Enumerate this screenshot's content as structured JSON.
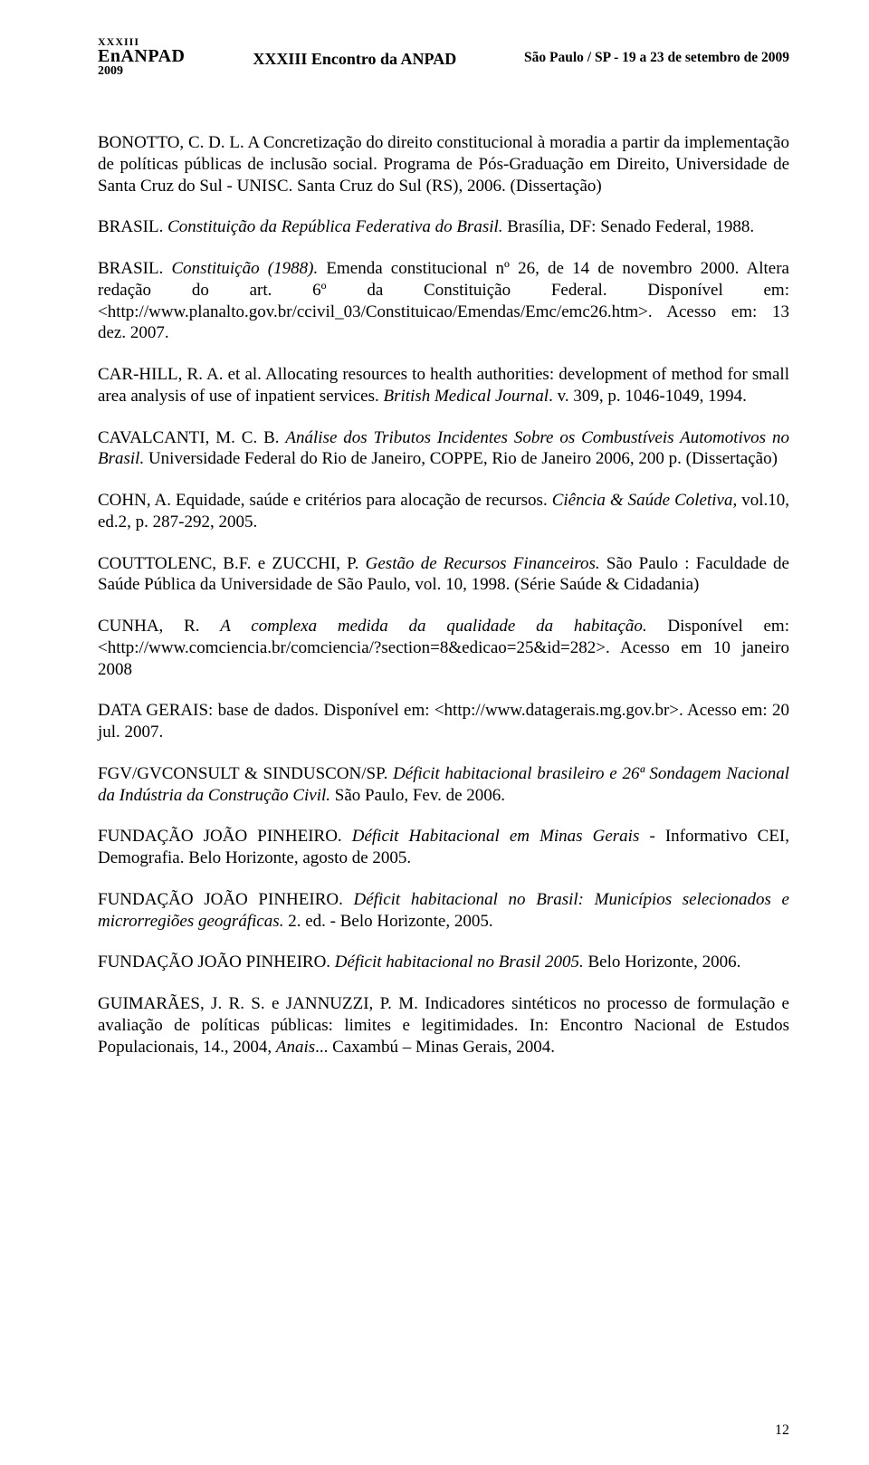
{
  "header": {
    "logo_top": "XXXIII",
    "logo_main": "EnANPAD",
    "logo_year": "2009",
    "event_title": "XXXIII Encontro da ANPAD",
    "venue_date": "São Paulo / SP - 19 a 23 de setembro de 2009"
  },
  "refs": {
    "r1a": "BONOTTO, C. D. L. A Concretização do direito constitucional à moradia a partir da implementação de políticas públicas de inclusão social. Programa de Pós-Graduação em Direito, Universidade de Santa Cruz do Sul - UNISC. Santa Cruz do Sul (RS), 2006. (Dissertação)",
    "r2a": "BRASIL. ",
    "r2b": "Constituição da República Federativa do Brasil.",
    "r2c": " Brasília, DF: Senado Federal, 1988.",
    "r3a": "BRASIL. ",
    "r3b": "Constituição (1988).",
    "r3c": " Emenda constitucional nº 26, de 14 de novembro 2000. Altera redação do art. 6º da Constituição Federal. Disponível em: <http://www.planalto.gov.br/ccivil_03/Constituicao/Emendas/Emc/emc26.htm>. Acesso em: 13 dez. 2007.",
    "r4a": "CAR-HILL, R. A. et al. Allocating resources to health authorities: development of  method for small area analysis of use of inpatient services. ",
    "r4b": "British Medical Journal",
    "r4c": ". v. 309, p. 1046-1049, 1994.",
    "r5a": "CAVALCANTI, M. C. B. ",
    "r5b": "Análise dos Tributos Incidentes Sobre os Combustíveis Automotivos no Brasil.",
    "r5c": " Universidade Federal do Rio de Janeiro, COPPE, Rio de Janeiro 2006, 200 p. (Dissertação)",
    "r6a": "COHN, A. Equidade, saúde e critérios para alocação de recursos. ",
    "r6b": "Ciência & Saúde Coletiva",
    "r6c": ", vol.10, ed.2, p. 287-292, 2005.",
    "r7a": "COUTTOLENC, B.F. e ZUCCHI, P. ",
    "r7b": "Gestão de Recursos Financeiros.",
    "r7c": " São Paulo : Faculdade de Saúde Pública da Universidade de São Paulo, vol. 10, 1998. (Série Saúde & Cidadania)",
    "r8a": "CUNHA, R. ",
    "r8b": "A complexa medida da qualidade da habitação.",
    "r8c": " Disponível em: <http://www.comciencia.br/comciencia/?section=8&edicao=25&id=282>. Acesso em 10 janeiro 2008",
    "r9a": "DATA GERAIS: base de dados. Disponível em: <http://www.datagerais.mg.gov.br>. Acesso em: 20 jul. 2007.",
    "r10a": "FGV/GVCONSULT & SINDUSCON/SP. ",
    "r10b": "Déficit habitacional brasileiro e 26ª Sondagem Nacional da Indústria da Construção Civil.",
    "r10c": " São Paulo, Fev. de 2006.",
    "r11a": "FUNDAÇÃO JOÃO PINHEIRO. ",
    "r11b": "Déficit Habitacional em Minas Gerais",
    "r11c": " - Informativo CEI, Demografia. Belo Horizonte, agosto de 2005.",
    "r12a": "FUNDAÇÃO JOÃO PINHEIRO. ",
    "r12b": "Déficit habitacional no Brasil: Municípios selecionados e microrregiões geográficas.",
    "r12c": " 2. ed. - Belo Horizonte, 2005.",
    "r13a": "FUNDAÇÃO JOÃO PINHEIRO. ",
    "r13b": "Déficit habitacional no Brasil 2005.",
    "r13c": " Belo Horizonte, 2006.",
    "r14a": "GUIMARÃES, J. R. S. e JANNUZZI, P. M. Indicadores sintéticos no processo de formulação e avaliação de políticas públicas: limites e legitimidades. In: Encontro Nacional de Estudos Populacionais, 14., 2004, ",
    "r14b": "Anais",
    "r14c": "... Caxambú – Minas Gerais, 2004."
  },
  "pagenum": "12"
}
